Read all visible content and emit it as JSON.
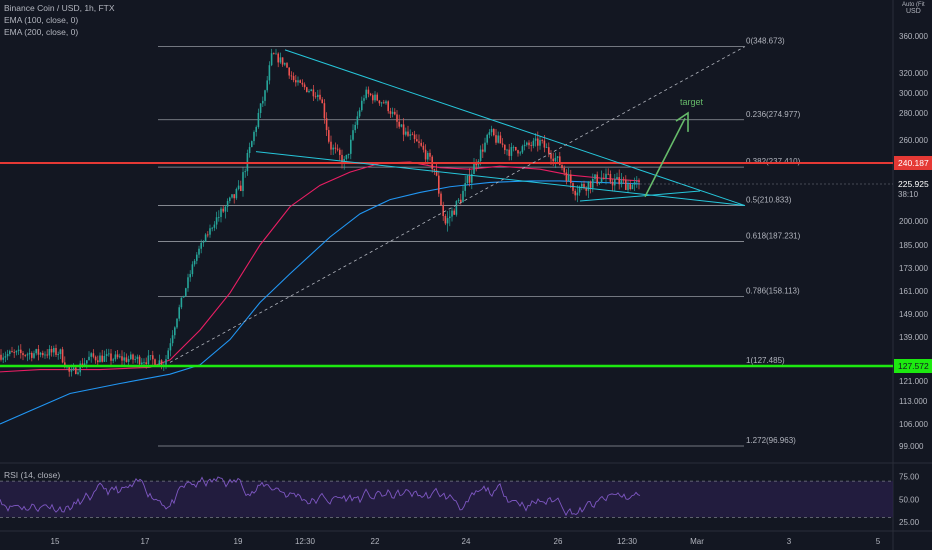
{
  "header": {
    "legend": [
      "Binance Coin / USD, 1h, FTX",
      "EMA (100, close, 0)",
      "EMA (200, close, 0)"
    ],
    "corner_labels": [
      "Auto (Fits Data To Screen)",
      "USD"
    ],
    "rsi_label": "RSI (14, close)"
  },
  "colors": {
    "background": "#131722",
    "up_candle": "#26a69a",
    "down_candle": "#ef5350",
    "ema100": "#e91e63",
    "ema200": "#2196f3",
    "resistance": "#e53935",
    "support": "#1de910",
    "trendline": "#26c6da",
    "target_arrow": "#66bb6a",
    "rsi": "#7e57c2"
  },
  "chart_data": {
    "type": "candlestick",
    "title": "Binance Coin / USD, 1h, FTX",
    "price_axis_ticks": [
      "360.000",
      "320.000",
      "300.000",
      "280.000",
      "260.000",
      "240.187",
      "225.925",
      "200.000",
      "185.000",
      "173.000",
      "161.000",
      "149.000",
      "139.000",
      "127.572",
      "121.000",
      "113.000",
      "106.000",
      "99.000"
    ],
    "time_axis_ticks": [
      "15",
      "17",
      "19",
      "12:30",
      "22",
      "24",
      "26",
      "12:30",
      "Mar",
      "3",
      "5"
    ],
    "current_price": "225.925",
    "countdown": "38:10",
    "resistance_level": "240.187",
    "support_level": "127.572",
    "fibonacci": [
      {
        "ratio": "0",
        "label": "0(348.673)"
      },
      {
        "ratio": "0.236",
        "label": "0.236(274.977)"
      },
      {
        "ratio": "0.382",
        "label": "0.382(237.410)"
      },
      {
        "ratio": "0.5",
        "label": "0.5(210.833)"
      },
      {
        "ratio": "0.618",
        "label": "0.618(187.231)"
      },
      {
        "ratio": "0.786",
        "label": "0.786(158.113)"
      },
      {
        "ratio": "1",
        "label": "1(127.485)"
      },
      {
        "ratio": "1.272",
        "label": "1.272(96.963)"
      }
    ],
    "annotation": "target",
    "rsi_ticks": [
      "75.00",
      "50.00",
      "25.00"
    ],
    "series": [
      {
        "name": "EMA (100, close, 0)"
      },
      {
        "name": "EMA (200, close, 0)"
      },
      {
        "name": "RSI (14, close)"
      }
    ]
  }
}
